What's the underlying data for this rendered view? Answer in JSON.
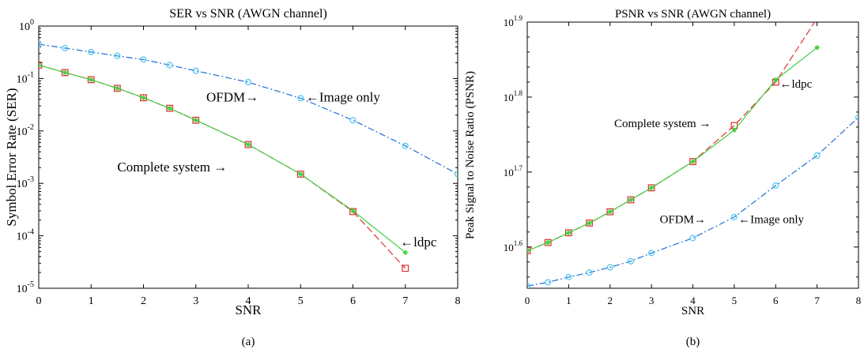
{
  "chart_data": [
    {
      "type": "line",
      "panel_label": "(a)",
      "title": "SER vs SNR (AWGN channel)",
      "xlabel": "SNR",
      "ylabel": "Symbol Error Rate (SER)",
      "xlim": [
        0,
        8
      ],
      "ylim": [
        1e-05,
        1
      ],
      "yscale": "log",
      "x_ticks": [
        0,
        1,
        2,
        3,
        4,
        5,
        6,
        7,
        8
      ],
      "y_ticks": [
        {
          "value": 1,
          "base": "10",
          "exp": "0"
        },
        {
          "value": 0.1,
          "base": "10",
          "exp": "-1"
        },
        {
          "value": 0.01,
          "base": "10",
          "exp": "-2"
        },
        {
          "value": 0.001,
          "base": "10",
          "exp": "-3"
        },
        {
          "value": 0.0001,
          "base": "10",
          "exp": "-4"
        },
        {
          "value": 1e-05,
          "base": "10",
          "exp": "-5"
        }
      ],
      "grid": false,
      "series": [
        {
          "name": "",
          "color": "#1f6fd6",
          "dash": "8,3,2,3",
          "marker": "circle",
          "marker_color": "#55c8f0",
          "x": [
            0,
            0.5,
            1,
            1.5,
            2,
            2.5,
            3,
            4,
            5,
            6,
            7,
            8
          ],
          "y": [
            0.45,
            0.38,
            0.32,
            0.27,
            0.23,
            0.18,
            0.14,
            0.085,
            0.042,
            0.016,
            0.0052,
            0.0015
          ]
        },
        {
          "name": "",
          "color": "#e03030",
          "dash": "9,4",
          "marker": "square",
          "marker_color": "#e03030",
          "x": [
            0,
            0.5,
            1,
            1.5,
            2,
            2.5,
            3,
            4,
            5,
            6,
            7
          ],
          "y": [
            0.18,
            0.13,
            0.095,
            0.065,
            0.043,
            0.027,
            0.016,
            0.0055,
            0.0015,
            0.00029,
            2.4e-05
          ]
        },
        {
          "name": "",
          "color": "#40d040",
          "dash": "",
          "marker": "star",
          "marker_color": "#40d040",
          "x": [
            0,
            0.5,
            1,
            1.5,
            2,
            2.5,
            3,
            4,
            5,
            6,
            7
          ],
          "y": [
            0.18,
            0.13,
            0.095,
            0.065,
            0.043,
            0.027,
            0.016,
            0.0055,
            0.0015,
            0.0003,
            4.8e-05
          ]
        }
      ],
      "annotations": [
        {
          "text": "OFDM→",
          "x": 3.2,
          "y": 0.045,
          "anchor": "start"
        },
        {
          "text": "←Image only",
          "x": 5.1,
          "y": 0.045,
          "anchor": "start"
        },
        {
          "text": "Complete system →",
          "x": 1.5,
          "y": 0.0021,
          "anchor": "start"
        },
        {
          "text": "←ldpc",
          "x": 6.9,
          "y": 7.8e-05,
          "anchor": "start"
        }
      ]
    },
    {
      "type": "line",
      "panel_label": "(b)",
      "title": "PSNR vs SNR (AWGN channel)",
      "xlabel": "SNR",
      "ylabel": "Peak Signal to Noise Ratio (PSNR)",
      "xlim": [
        0,
        8
      ],
      "ylim": [
        1.545,
        1.9
      ],
      "yscale": "log",
      "x_ticks": [
        0,
        1,
        2,
        3,
        4,
        5,
        6,
        7,
        8
      ],
      "y_ticks": [
        {
          "value": 1.9,
          "base": "10",
          "exp": "1.9"
        },
        {
          "value": 1.8,
          "base": "10",
          "exp": "1.8"
        },
        {
          "value": 1.7,
          "base": "10",
          "exp": "1.7"
        },
        {
          "value": 1.6,
          "base": "10",
          "exp": "1.6"
        }
      ],
      "grid": false,
      "series": [
        {
          "name": "",
          "color": "#1f6fd6",
          "dash": "8,3,2,3",
          "marker": "circle",
          "marker_color": "#55c8f0",
          "x": [
            0,
            0.5,
            1,
            1.5,
            2,
            2.5,
            3,
            4,
            5,
            6,
            7,
            8
          ],
          "y": [
            1.548,
            1.553,
            1.56,
            1.566,
            1.573,
            1.581,
            1.592,
            1.612,
            1.64,
            1.682,
            1.722,
            1.773
          ]
        },
        {
          "name": "",
          "color": "#e03030",
          "dash": "9,4",
          "marker": "square",
          "marker_color": "#e03030",
          "x": [
            0,
            0.5,
            1,
            1.5,
            2,
            2.5,
            3,
            4,
            5,
            6,
            7
          ],
          "y": [
            1.595,
            1.606,
            1.619,
            1.632,
            1.647,
            1.663,
            1.679,
            1.714,
            1.762,
            1.82,
            1.905
          ]
        },
        {
          "name": "",
          "color": "#40d040",
          "dash": "",
          "marker": "star",
          "marker_color": "#40d040",
          "x": [
            0,
            0.5,
            1,
            1.5,
            2,
            2.5,
            3,
            4,
            5,
            6,
            7
          ],
          "y": [
            1.595,
            1.606,
            1.619,
            1.632,
            1.647,
            1.663,
            1.679,
            1.714,
            1.756,
            1.823,
            1.866
          ]
        }
      ],
      "annotations": [
        {
          "text": "OFDM→",
          "x": 3.2,
          "y": 1.638,
          "anchor": "start"
        },
        {
          "text": "←Image only",
          "x": 5.1,
          "y": 1.638,
          "anchor": "start"
        },
        {
          "text": "Complete system →",
          "x": 2.1,
          "y": 1.766,
          "anchor": "start"
        },
        {
          "text": "←ldpc",
          "x": 6.1,
          "y": 1.819,
          "anchor": "start"
        }
      ]
    }
  ]
}
